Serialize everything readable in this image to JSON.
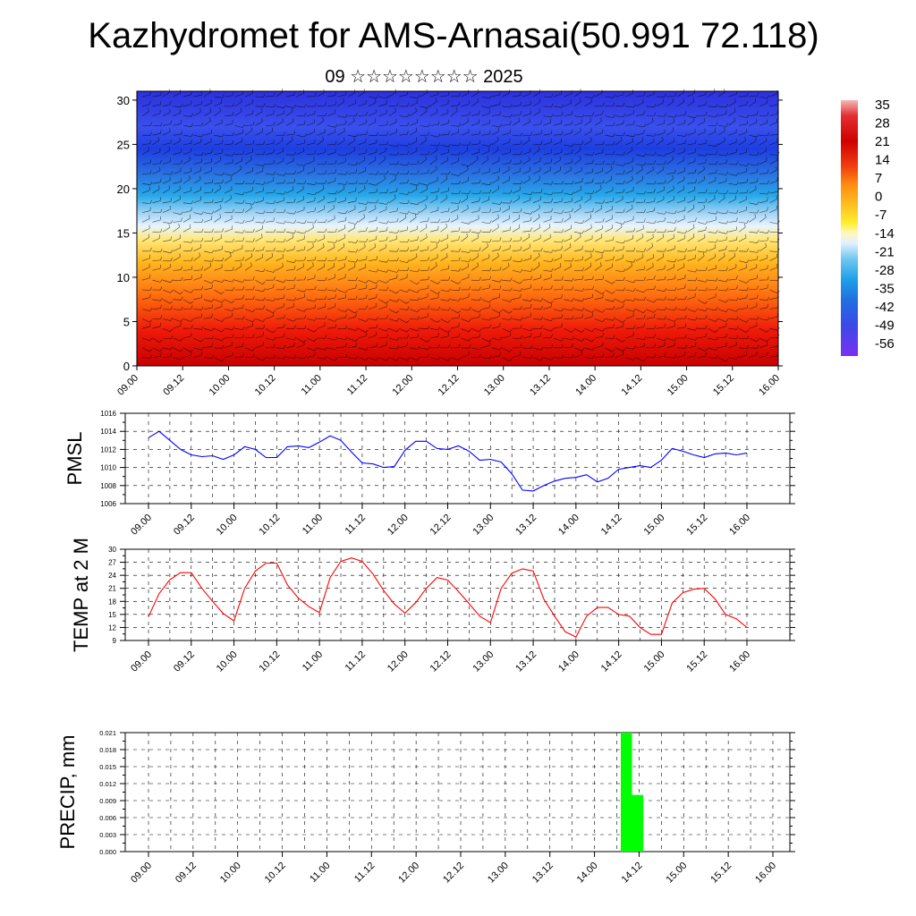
{
  "header": {
    "title": "Kazhydromet for AMS-Arnasai(50.991 72.118)",
    "subtitle": "09 ☆☆☆☆☆☆☆☆ 2025"
  },
  "colors": {
    "pmsl_line": "#0000ff",
    "temp_line": "#ff0000",
    "precip_bar": "#00ff00",
    "grid": "#000000"
  },
  "chart_data": [
    {
      "type": "heatmap",
      "name": "upper-air-section",
      "x_tick_labels": [
        "09.00",
        "09.12",
        "10.00",
        "10.12",
        "11.00",
        "11.12",
        "12.00",
        "12.12",
        "13.00",
        "13.12",
        "14.00",
        "14.12",
        "15.00",
        "15.12",
        "16.00"
      ],
      "y_ticks": [
        0,
        5,
        10,
        15,
        20,
        25,
        30
      ],
      "ylim": [
        0,
        31
      ],
      "colorbar_labels": [
        "35",
        "28",
        "21",
        "14",
        "7",
        "0",
        "-7",
        "-14",
        "-21",
        "-28",
        "-35",
        "-42",
        "-49",
        "-56"
      ],
      "overlay": "wind barbs",
      "temperature_by_height_approx": {
        "heights": [
          0,
          5,
          10,
          14,
          16,
          18,
          20,
          23,
          26,
          30
        ],
        "values": [
          21,
          17,
          10,
          2,
          -8,
          -21,
          -33,
          -45,
          -40,
          -45
        ]
      }
    },
    {
      "type": "line",
      "name": "pmsl",
      "ylabel": "PMSL",
      "ylim": [
        1006,
        1016
      ],
      "y_ticks": [
        1006,
        1008,
        1010,
        1012,
        1014,
        1016
      ],
      "x_tick_labels": [
        "09.00",
        "09.12",
        "10.00",
        "10.12",
        "11.00",
        "11.12",
        "12.00",
        "12.12",
        "13.00",
        "13.12",
        "14.00",
        "14.12",
        "15.00",
        "15.12",
        "16.00"
      ],
      "x_step_hours": 3,
      "values": [
        1013.3,
        1014.0,
        1013.0,
        1012.0,
        1011.4,
        1011.2,
        1011.3,
        1010.9,
        1011.4,
        1012.3,
        1012.0,
        1011.1,
        1011.1,
        1012.3,
        1012.4,
        1012.2,
        1012.8,
        1013.5,
        1013.0,
        1011.7,
        1010.5,
        1010.4,
        1010.0,
        1010.1,
        1011.9,
        1012.9,
        1012.9,
        1012.1,
        1012.0,
        1012.4,
        1011.8,
        1010.8,
        1010.9,
        1010.6,
        1009.3,
        1007.5,
        1007.4,
        1008.0,
        1008.5,
        1008.8,
        1008.9,
        1009.2,
        1008.4,
        1008.8,
        1009.8,
        1010.0,
        1010.2,
        1010.0,
        1010.8,
        1012.1,
        1011.8,
        1011.4,
        1011.1,
        1011.5,
        1011.6,
        1011.4,
        1011.6
      ]
    },
    {
      "type": "line",
      "name": "temp-2m",
      "ylabel": "TEMP at 2 M",
      "ylim": [
        9,
        30
      ],
      "y_ticks": [
        9,
        12,
        15,
        18,
        21,
        24,
        27,
        30
      ],
      "x_tick_labels": [
        "09.00",
        "09.12",
        "10.00",
        "10.12",
        "11.00",
        "11.12",
        "12.00",
        "12.12",
        "13.00",
        "13.12",
        "14.00",
        "14.12",
        "15.00",
        "15.12",
        "16.00"
      ],
      "x_step_hours": 3,
      "values": [
        14.5,
        19.8,
        23.0,
        24.6,
        24.6,
        21.0,
        18.0,
        15.2,
        13.5,
        21.0,
        25.0,
        26.8,
        26.8,
        21.8,
        18.8,
        16.8,
        15.4,
        23.5,
        27.2,
        28.0,
        27.2,
        24.3,
        20.5,
        17.4,
        15.3,
        17.7,
        21.0,
        23.5,
        22.9,
        20.3,
        17.5,
        14.6,
        13.1,
        21.0,
        24.5,
        25.5,
        25.0,
        18.5,
        14.6,
        11.0,
        9.8,
        14.6,
        16.6,
        16.6,
        15.0,
        14.6,
        12.0,
        10.4,
        10.4,
        17.6,
        20.0,
        20.8,
        21.0,
        18.6,
        15.0,
        14.0,
        12.0
      ]
    },
    {
      "type": "bar",
      "name": "precip",
      "ylabel": "PRECIP, mm",
      "ylim": [
        0,
        0.021
      ],
      "y_tick_labels": [
        "0.000",
        "0.003",
        "0.006",
        "0.009",
        "0.012",
        "0.015",
        "0.018",
        "0.021"
      ],
      "x_tick_labels": [
        "09.00",
        "09.12",
        "10.00",
        "10.12",
        "11.00",
        "11.12",
        "12.00",
        "12.12",
        "13.00",
        "13.12",
        "14.00",
        "14.12",
        "15.00",
        "15.12",
        "16.00"
      ],
      "x_step_hours": 3,
      "values": [
        0,
        0,
        0,
        0,
        0,
        0,
        0,
        0,
        0,
        0,
        0,
        0,
        0,
        0,
        0,
        0,
        0,
        0,
        0,
        0,
        0,
        0,
        0,
        0,
        0,
        0,
        0,
        0,
        0,
        0,
        0,
        0,
        0,
        0,
        0,
        0,
        0,
        0,
        0,
        0,
        0,
        0,
        0,
        0.021,
        0.01,
        0,
        0,
        0,
        0,
        0,
        0,
        0,
        0,
        0,
        0,
        0,
        0
      ]
    }
  ]
}
